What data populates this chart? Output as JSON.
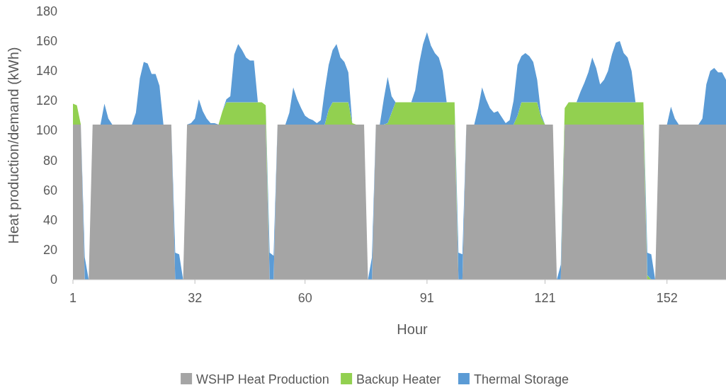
{
  "chart_data": {
    "type": "area",
    "stacked": true,
    "xlabel": "Hour",
    "ylabel": "Heat production/demand (kWh)",
    "x": [
      1,
      2,
      3,
      4,
      5,
      6,
      7,
      8,
      9,
      10,
      11,
      12,
      13,
      14,
      15,
      16,
      17,
      18,
      19,
      20,
      21,
      22,
      23,
      24,
      25,
      26,
      27,
      28,
      29,
      30,
      31,
      32,
      33,
      34,
      35,
      36,
      37,
      38,
      39,
      40,
      41,
      42,
      43,
      44,
      45,
      46,
      47,
      48,
      49,
      50,
      51,
      52,
      53,
      54,
      55,
      56,
      57,
      58,
      59,
      60,
      61,
      62,
      63,
      64,
      65,
      66,
      67,
      68,
      69,
      70,
      71,
      72,
      73,
      74,
      75,
      76,
      77,
      78,
      79,
      80,
      81,
      82,
      83,
      84,
      85,
      86,
      87,
      88,
      89,
      90,
      91,
      92,
      93,
      94,
      95,
      96,
      97,
      98,
      99,
      100,
      101,
      102,
      103,
      104,
      105,
      106,
      107,
      108,
      109,
      110,
      111,
      112,
      113,
      114,
      115,
      116,
      117,
      118,
      119,
      120,
      121,
      122,
      123,
      124,
      125,
      126,
      127,
      128,
      129,
      130,
      131,
      132,
      133,
      134,
      135,
      136,
      137,
      138,
      139,
      140,
      141,
      142,
      143,
      144,
      145,
      146,
      147,
      148,
      149,
      150,
      151,
      152,
      153,
      154,
      155,
      156,
      157,
      158,
      159,
      160,
      161,
      162,
      163,
      164,
      165,
      166,
      167
    ],
    "series": [
      {
        "name": "WSHP Heat Production",
        "color": "#a5a5a5",
        "values": [
          104,
          104,
          104,
          0,
          0,
          104,
          104,
          104,
          104,
          104,
          104,
          104,
          104,
          104,
          104,
          104,
          104,
          104,
          104,
          104,
          104,
          104,
          104,
          104,
          104,
          104,
          0,
          0,
          0,
          104,
          104,
          104,
          104,
          104,
          104,
          104,
          104,
          104,
          104,
          104,
          104,
          104,
          104,
          104,
          104,
          104,
          104,
          104,
          104,
          104,
          0,
          0,
          104,
          104,
          104,
          104,
          104,
          104,
          104,
          104,
          104,
          104,
          104,
          104,
          104,
          104,
          104,
          104,
          104,
          104,
          104,
          104,
          104,
          104,
          104,
          0,
          0,
          104,
          104,
          104,
          104,
          104,
          104,
          104,
          104,
          104,
          104,
          104,
          104,
          104,
          104,
          104,
          104,
          104,
          104,
          104,
          104,
          104,
          0,
          0,
          104,
          104,
          104,
          104,
          104,
          104,
          104,
          104,
          104,
          104,
          104,
          104,
          104,
          104,
          104,
          104,
          104,
          104,
          104,
          104,
          104,
          104,
          104,
          0,
          0,
          104,
          104,
          104,
          104,
          104,
          104,
          104,
          104,
          104,
          104,
          104,
          104,
          104,
          104,
          104,
          104,
          104,
          104,
          104,
          104,
          104,
          0,
          0,
          0,
          104,
          104,
          104,
          104,
          104,
          104,
          104,
          104,
          104,
          104,
          104,
          104,
          104,
          104,
          104,
          104,
          104,
          104
        ]
      },
      {
        "name": "Backup Heater",
        "color": "#92d050",
        "values": [
          14,
          13,
          0,
          0,
          0,
          0,
          0,
          0,
          0,
          0,
          0,
          0,
          0,
          0,
          0,
          0,
          0,
          0,
          0,
          0,
          0,
          0,
          0,
          0,
          0,
          0,
          0,
          0,
          0,
          0,
          0,
          0,
          0,
          0,
          0,
          0,
          0,
          0,
          9,
          15,
          15,
          15,
          15,
          15,
          15,
          15,
          15,
          15,
          15,
          13,
          0,
          0,
          0,
          0,
          0,
          0,
          0,
          0,
          0,
          0,
          0,
          0,
          0,
          0,
          0,
          10,
          15,
          15,
          15,
          15,
          15,
          1,
          0,
          0,
          0,
          0,
          0,
          0,
          0,
          0,
          1,
          8,
          15,
          15,
          15,
          15,
          15,
          15,
          15,
          15,
          15,
          15,
          15,
          15,
          15,
          15,
          15,
          15,
          0,
          0,
          0,
          0,
          0,
          0,
          0,
          0,
          0,
          0,
          0,
          0,
          0,
          0,
          0,
          6,
          15,
          15,
          15,
          15,
          15,
          5,
          0,
          0,
          0,
          0,
          0,
          11,
          15,
          15,
          15,
          15,
          15,
          15,
          15,
          15,
          15,
          15,
          15,
          15,
          15,
          15,
          15,
          15,
          15,
          15,
          15,
          15,
          3,
          0,
          0,
          0,
          0,
          0,
          0,
          0,
          0,
          0,
          0,
          0,
          0,
          0,
          0,
          0,
          0,
          0,
          0,
          0,
          0
        ]
      },
      {
        "name": "Thermal Storage",
        "color": "#5b9bd5",
        "values": [
          0,
          0,
          0,
          15,
          0,
          0,
          0,
          0,
          14,
          4,
          0,
          0,
          0,
          0,
          0,
          0,
          8,
          31,
          42,
          41,
          34,
          34,
          26,
          0,
          0,
          0,
          18,
          17,
          0,
          0,
          1,
          4,
          17,
          9,
          4,
          1,
          1,
          0,
          0,
          2,
          4,
          32,
          39,
          35,
          30,
          28,
          28,
          0,
          0,
          0,
          18,
          16,
          0,
          0,
          0,
          8,
          25,
          17,
          11,
          6,
          4,
          3,
          1,
          3,
          23,
          30,
          35,
          39,
          30,
          27,
          20,
          0,
          0,
          0,
          0,
          0,
          15,
          0,
          0,
          17,
          31,
          11,
          0,
          0,
          0,
          0,
          0,
          8,
          26,
          39,
          47,
          38,
          33,
          30,
          21,
          0,
          0,
          0,
          18,
          17,
          0,
          0,
          0,
          11,
          25,
          17,
          11,
          8,
          9,
          5,
          1,
          3,
          16,
          34,
          31,
          33,
          31,
          27,
          15,
          2,
          0,
          0,
          0,
          0,
          10,
          0,
          0,
          0,
          0,
          7,
          13,
          20,
          30,
          23,
          12,
          15,
          21,
          32,
          40,
          41,
          33,
          30,
          21,
          0,
          0,
          0,
          15,
          17,
          0,
          0,
          0,
          0,
          12,
          4,
          0,
          0,
          0,
          0,
          0,
          0,
          4,
          27,
          36,
          38,
          35,
          35,
          30
        ]
      }
    ],
    "xlim": [
      1,
      167
    ],
    "xticks": [
      1,
      32,
      60,
      91,
      121,
      152
    ],
    "ylim": [
      0,
      180
    ],
    "yticks": [
      0,
      20,
      40,
      60,
      80,
      100,
      120,
      140,
      160,
      180
    ],
    "grid": false,
    "legend": "bottom"
  }
}
